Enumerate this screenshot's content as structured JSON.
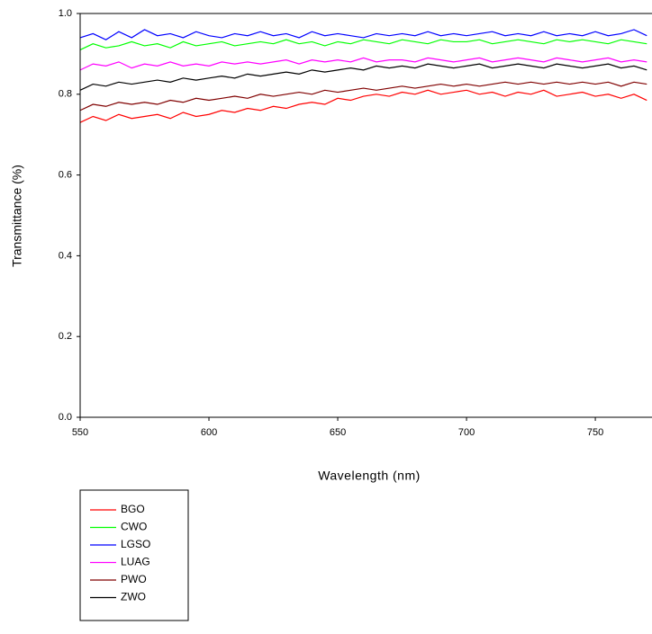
{
  "chart_data": {
    "type": "line",
    "xlabel": "Wavelength (nm)",
    "ylabel": "Transmittance (%)",
    "x": [
      550,
      555,
      560,
      565,
      570,
      575,
      580,
      585,
      590,
      595,
      600,
      605,
      610,
      615,
      620,
      625,
      630,
      635,
      640,
      645,
      650,
      655,
      660,
      665,
      670,
      675,
      680,
      685,
      690,
      695,
      700,
      705,
      710,
      715,
      720,
      725,
      730,
      735,
      740,
      745,
      750,
      755,
      760,
      765,
      770
    ],
    "xlim": [
      550,
      772
    ],
    "xticks": [
      550,
      600,
      650,
      700,
      750
    ],
    "ylim": [
      0,
      1
    ],
    "yticks": [
      {
        "value": 0,
        "label": "0.0"
      },
      0.2,
      0.4,
      0.6,
      0.8,
      {
        "value": 1,
        "label": "1.0"
      }
    ],
    "series": [
      {
        "name": "BGO",
        "color": "#ff0000",
        "values": [
          0.73,
          0.745,
          0.735,
          0.75,
          0.74,
          0.745,
          0.75,
          0.74,
          0.755,
          0.745,
          0.75,
          0.76,
          0.755,
          0.765,
          0.76,
          0.77,
          0.765,
          0.775,
          0.78,
          0.775,
          0.79,
          0.785,
          0.795,
          0.8,
          0.795,
          0.805,
          0.8,
          0.81,
          0.8,
          0.805,
          0.81,
          0.8,
          0.805,
          0.795,
          0.805,
          0.8,
          0.81,
          0.795,
          0.8,
          0.805,
          0.795,
          0.8,
          0.79,
          0.8,
          0.785
        ]
      },
      {
        "name": "CWO",
        "color": "#00ff00",
        "values": [
          0.91,
          0.925,
          0.915,
          0.92,
          0.93,
          0.92,
          0.925,
          0.915,
          0.93,
          0.92,
          0.925,
          0.93,
          0.92,
          0.925,
          0.93,
          0.925,
          0.935,
          0.925,
          0.93,
          0.92,
          0.93,
          0.925,
          0.935,
          0.93,
          0.925,
          0.935,
          0.93,
          0.925,
          0.935,
          0.93,
          0.93,
          0.935,
          0.925,
          0.93,
          0.935,
          0.93,
          0.925,
          0.935,
          0.93,
          0.935,
          0.93,
          0.925,
          0.935,
          0.93,
          0.925
        ]
      },
      {
        "name": "LGSO",
        "color": "#0000ff",
        "values": [
          0.94,
          0.95,
          0.935,
          0.955,
          0.94,
          0.96,
          0.945,
          0.95,
          0.94,
          0.955,
          0.945,
          0.94,
          0.95,
          0.945,
          0.955,
          0.945,
          0.95,
          0.94,
          0.955,
          0.945,
          0.95,
          0.945,
          0.94,
          0.95,
          0.945,
          0.95,
          0.945,
          0.955,
          0.945,
          0.95,
          0.945,
          0.95,
          0.955,
          0.945,
          0.95,
          0.945,
          0.955,
          0.945,
          0.95,
          0.945,
          0.955,
          0.945,
          0.95,
          0.96,
          0.945
        ]
      },
      {
        "name": "LUAG",
        "color": "#ff00ff",
        "values": [
          0.86,
          0.875,
          0.87,
          0.88,
          0.865,
          0.875,
          0.87,
          0.88,
          0.87,
          0.875,
          0.87,
          0.88,
          0.875,
          0.88,
          0.875,
          0.88,
          0.885,
          0.875,
          0.885,
          0.88,
          0.885,
          0.88,
          0.89,
          0.88,
          0.885,
          0.885,
          0.88,
          0.89,
          0.885,
          0.88,
          0.885,
          0.89,
          0.88,
          0.885,
          0.89,
          0.885,
          0.88,
          0.89,
          0.885,
          0.88,
          0.885,
          0.89,
          0.88,
          0.885,
          0.88
        ]
      },
      {
        "name": "PWO",
        "color": "#800000",
        "values": [
          0.76,
          0.775,
          0.77,
          0.78,
          0.775,
          0.78,
          0.775,
          0.785,
          0.78,
          0.79,
          0.785,
          0.79,
          0.795,
          0.79,
          0.8,
          0.795,
          0.8,
          0.805,
          0.8,
          0.81,
          0.805,
          0.81,
          0.815,
          0.81,
          0.815,
          0.82,
          0.815,
          0.82,
          0.825,
          0.82,
          0.825,
          0.82,
          0.825,
          0.83,
          0.825,
          0.83,
          0.825,
          0.83,
          0.825,
          0.83,
          0.825,
          0.83,
          0.82,
          0.83,
          0.825
        ]
      },
      {
        "name": "ZWO",
        "color": "#000000",
        "values": [
          0.81,
          0.825,
          0.82,
          0.83,
          0.825,
          0.83,
          0.835,
          0.83,
          0.84,
          0.835,
          0.84,
          0.845,
          0.84,
          0.85,
          0.845,
          0.85,
          0.855,
          0.85,
          0.86,
          0.855,
          0.86,
          0.865,
          0.86,
          0.87,
          0.865,
          0.87,
          0.865,
          0.875,
          0.87,
          0.865,
          0.87,
          0.875,
          0.865,
          0.87,
          0.875,
          0.87,
          0.865,
          0.875,
          0.87,
          0.865,
          0.87,
          0.875,
          0.865,
          0.87,
          0.86
        ]
      }
    ]
  }
}
